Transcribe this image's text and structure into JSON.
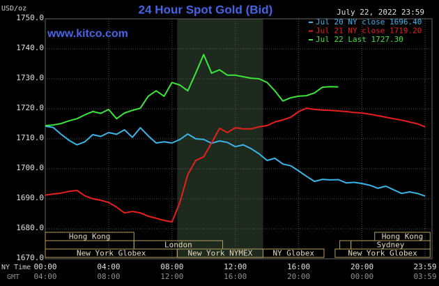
{
  "chart_data": {
    "type": "line",
    "title": "24 Hour Spot Gold (Bid)",
    "date": "July 22, 2022 23:59",
    "site": "www.kitco.com",
    "y_label": "USD/oz",
    "x_label": "NY Time",
    "x2_label": "GMT",
    "x": [
      0,
      0.5,
      1,
      1.5,
      2,
      2.5,
      3,
      3.5,
      4,
      4.5,
      5,
      5.5,
      6,
      6.5,
      7,
      7.5,
      8,
      8.5,
      9,
      9.5,
      10,
      10.5,
      11,
      11.5,
      12,
      12.5,
      13,
      13.5,
      14,
      14.5,
      15,
      15.5,
      16,
      16.5,
      17,
      17.5,
      18,
      18.5,
      19,
      19.5,
      20,
      20.5,
      21,
      21.5,
      22,
      22.5,
      23,
      23.5,
      23.98
    ],
    "series": [
      {
        "name": "Jul 20 NY close 1696.40",
        "color": "#3cb4e6",
        "values": [
          1714.2,
          1713.8,
          1711.5,
          1709.5,
          1708.0,
          1709.0,
          1711.4,
          1710.8,
          1712.1,
          1711.5,
          1713.0,
          1710.5,
          1713.7,
          1711.0,
          1708.6,
          1709.0,
          1708.6,
          1709.8,
          1711.6,
          1710.0,
          1709.8,
          1708.5,
          1709.3,
          1708.8,
          1707.4,
          1708.0,
          1706.7,
          1705.0,
          1702.8,
          1703.5,
          1701.6,
          1701.0,
          1699.3,
          1697.5,
          1695.8,
          1696.5,
          1696.3,
          1696.4,
          1695.3,
          1695.5,
          1695.1,
          1694.5,
          1693.5,
          1694.2,
          1693.0,
          1691.8,
          1692.3,
          1691.8,
          1690.9
        ]
      },
      {
        "name": "Jul 21 NY close 1719.20",
        "color": "#e8201c",
        "values": [
          1691.2,
          1691.6,
          1691.9,
          1692.5,
          1692.8,
          1691.0,
          1690.0,
          1689.5,
          1688.8,
          1687.2,
          1685.3,
          1685.8,
          1685.3,
          1684.2,
          1683.5,
          1682.8,
          1682.3,
          1688.8,
          1698.1,
          1702.8,
          1704.0,
          1708.6,
          1713.5,
          1712.1,
          1713.7,
          1713.3,
          1713.3,
          1714.0,
          1714.4,
          1715.6,
          1716.3,
          1717.2,
          1719.1,
          1720.2,
          1719.8,
          1719.6,
          1719.5,
          1719.3,
          1719.1,
          1718.8,
          1718.6,
          1718.2,
          1717.7,
          1717.2,
          1716.7,
          1716.2,
          1715.6,
          1715.0,
          1714.0
        ]
      },
      {
        "name": "Jul 22 Last 1727.30",
        "color": "#3ce63c",
        "values": [
          1714.4,
          1714.6,
          1715.1,
          1716.0,
          1716.7,
          1718.0,
          1719.1,
          1718.5,
          1719.8,
          1716.7,
          1718.6,
          1719.5,
          1720.2,
          1724.2,
          1726.0,
          1724.2,
          1728.8,
          1727.9,
          1726.0,
          1731.9,
          1738.1,
          1731.9,
          1733.0,
          1731.2,
          1731.2,
          1730.7,
          1730.2,
          1730.0,
          1728.8,
          1726.0,
          1722.6,
          1723.7,
          1724.2,
          1724.4,
          1725.3,
          1727.2,
          1727.4,
          1727.3,
          null,
          null,
          null,
          null,
          null,
          null,
          null,
          null,
          null,
          null,
          null
        ]
      }
    ],
    "xlim": [
      0,
      23.98
    ],
    "xticks": [
      {
        "value": 0,
        "label": "00:00"
      },
      {
        "value": 4,
        "label": "04:00"
      },
      {
        "value": 8,
        "label": "08:00"
      },
      {
        "value": 12,
        "label": "12:00"
      },
      {
        "value": 16,
        "label": "16:00"
      },
      {
        "value": 20,
        "label": "20:00"
      },
      {
        "value": 23.98,
        "label": "23:59"
      }
    ],
    "gmt_ticks": [
      "04:00",
      "08:00",
      "12:00",
      "16:00",
      "20:00",
      "00:00",
      "03:59"
    ],
    "ylim": [
      1670,
      1750
    ],
    "yticks": [
      {
        "value": 1670,
        "label": "1670.0"
      },
      {
        "value": 1680,
        "label": "1680.0"
      },
      {
        "value": 1690,
        "label": "1690.0"
      },
      {
        "value": 1700,
        "label": "1700.0"
      },
      {
        "value": 1710,
        "label": "1710.0"
      },
      {
        "value": 1720,
        "label": "1720.0"
      },
      {
        "value": 1730,
        "label": "1730.0"
      },
      {
        "value": 1740,
        "label": "1740.0"
      },
      {
        "value": 1750,
        "label": "1750.0"
      }
    ],
    "highlight": [
      8.33,
      13.75
    ],
    "grid": true,
    "sessions": [
      "Hong Kong",
      "London",
      "New York Globex",
      "New York NYMEX",
      "NY Globex",
      "Hong Kong",
      "Sydney",
      "New York Globex"
    ]
  }
}
